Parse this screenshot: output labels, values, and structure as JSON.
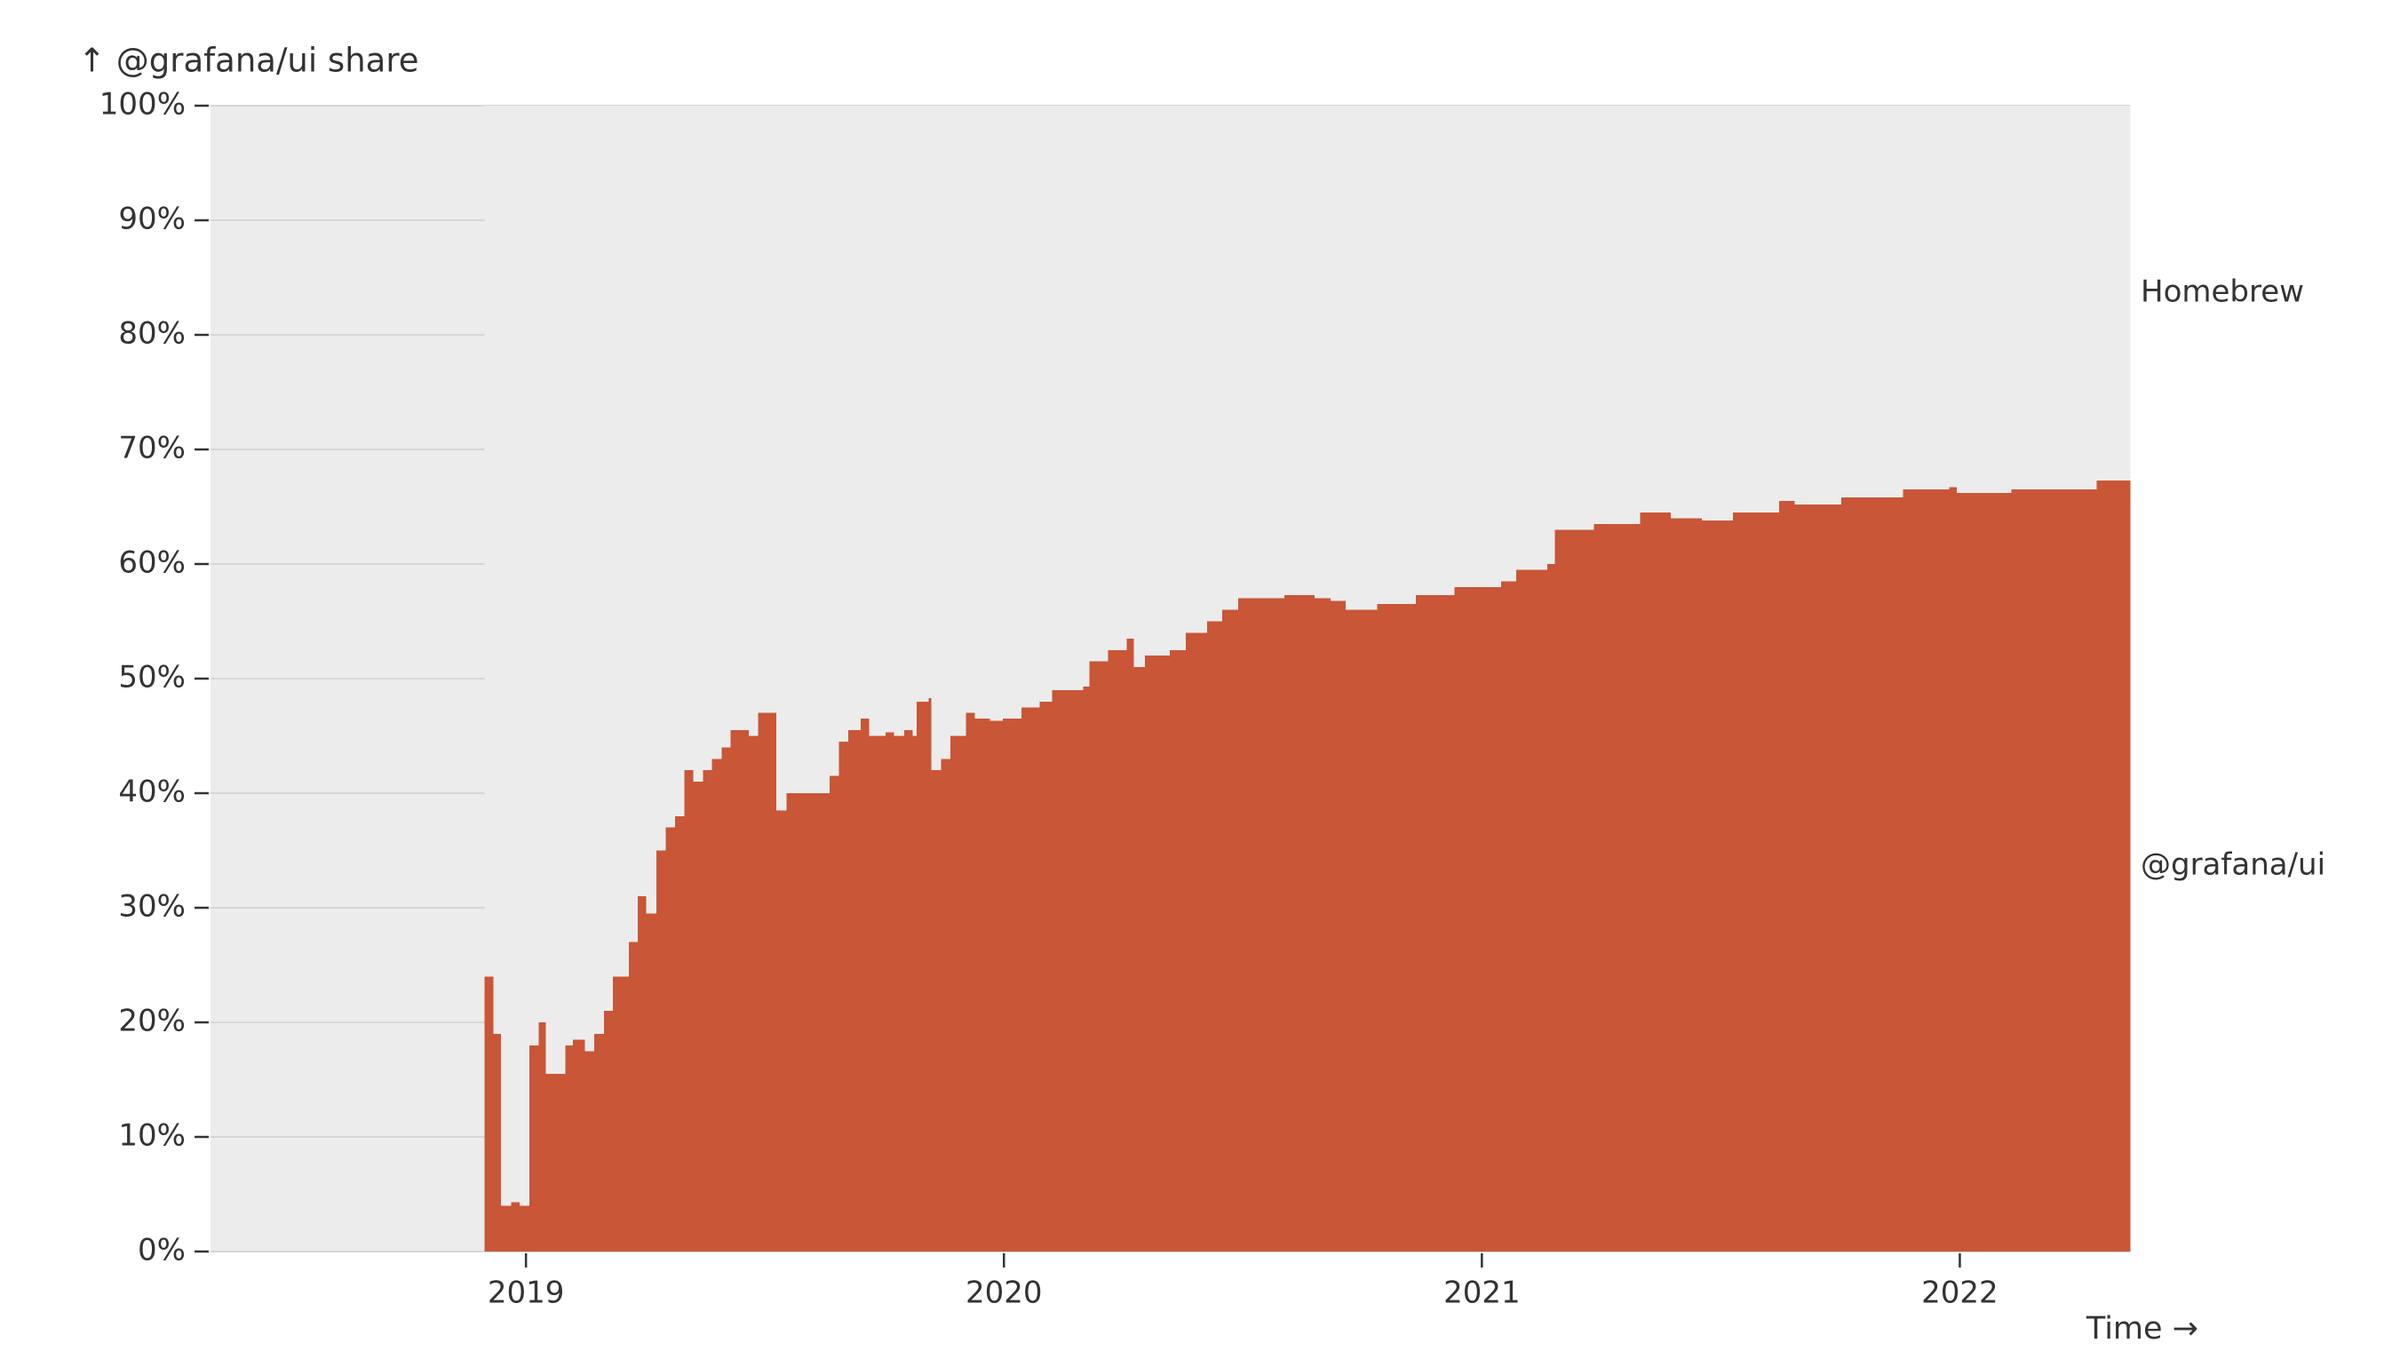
{
  "chart_data": {
    "type": "stacked_step_area",
    "title": "↑ @grafana/ui share",
    "x_label": "Time →",
    "x": [
      2018.913,
      2018.932,
      2018.948,
      2018.968,
      2018.987,
      2019.006,
      2019.026,
      2019.042,
      2019.081,
      2019.097,
      2019.123,
      2019.142,
      2019.162,
      2019.181,
      2019.214,
      2019.233,
      2019.252,
      2019.272,
      2019.291,
      2019.311,
      2019.33,
      2019.35,
      2019.369,
      2019.388,
      2019.408,
      2019.427,
      2019.466,
      2019.485,
      2019.524,
      2019.544,
      2019.634,
      2019.654,
      2019.673,
      2019.699,
      2019.718,
      2019.751,
      2019.77,
      2019.79,
      2019.809,
      2019.816,
      2019.841,
      2019.848,
      2019.867,
      2019.887,
      2019.919,
      2019.939,
      2019.971,
      2019.997,
      2020.036,
      2020.074,
      2020.1,
      2020.165,
      2020.178,
      2020.217,
      2020.256,
      2020.272,
      2020.294,
      2020.346,
      2020.379,
      2020.424,
      2020.456,
      2020.489,
      2020.586,
      2020.65,
      2020.683,
      2020.715,
      2020.78,
      2020.861,
      2020.942,
      2021.039,
      2021.071,
      2021.136,
      2021.152,
      2021.233,
      2021.33,
      2021.395,
      2021.46,
      2021.524,
      2021.621,
      2021.654,
      2021.751,
      2021.88,
      2021.977,
      2021.994,
      2022.107,
      2022.285
    ],
    "series": [
      {
        "name": "@grafana/ui",
        "color": "#c85637",
        "values": [
          24,
          19,
          4,
          4.3,
          4,
          18,
          20,
          15.5,
          18,
          18.5,
          17.5,
          19,
          21,
          24,
          27,
          31,
          29.5,
          35,
          37,
          38,
          42,
          41,
          42,
          43,
          44,
          45.5,
          45,
          47,
          38.5,
          40,
          41.5,
          44.5,
          45.5,
          46.5,
          45,
          45.3,
          45,
          45.5,
          45,
          48,
          48.3,
          42,
          43,
          45,
          47,
          46.5,
          46.3,
          46.5,
          47.5,
          48,
          49,
          49.3,
          51.5,
          52.5,
          53.5,
          51,
          52,
          52.5,
          54,
          55,
          56,
          57,
          57.3,
          57,
          56.8,
          56,
          56.5,
          57.3,
          58,
          58.5,
          59.5,
          60,
          63,
          63.5,
          64.5,
          64,
          63.8,
          64.5,
          65.5,
          65.2,
          65.8,
          66.5,
          66.7,
          66.2,
          66.5,
          67.3
        ]
      },
      {
        "name": "Homebrew",
        "color": "#ececec",
        "values": [
          76,
          81,
          96,
          95.7,
          96,
          82,
          80,
          84.5,
          82,
          81.5,
          82.5,
          81,
          79,
          76,
          73,
          69,
          70.5,
          65,
          63,
          62,
          58,
          59,
          58,
          57,
          56,
          54.5,
          55,
          53,
          61.5,
          60,
          58.5,
          55.5,
          54.5,
          53.5,
          55,
          54.7,
          55,
          54.5,
          55,
          52,
          51.7,
          58,
          57,
          55,
          53,
          53.5,
          53.7,
          53.5,
          52.5,
          52,
          51,
          50.7,
          48.5,
          47.5,
          46.5,
          49,
          48,
          47.5,
          46,
          45,
          44,
          43,
          42.7,
          43,
          43.2,
          44,
          43.5,
          42.7,
          42,
          41.5,
          40.5,
          40,
          37,
          36.5,
          35.5,
          36,
          36.2,
          35.5,
          34.5,
          34.8,
          34.2,
          33.5,
          33.3,
          33.8,
          33.5,
          32.7
        ]
      }
    ],
    "xlim": [
      2018.34,
      2022.356
    ],
    "xticks": [
      2019,
      2020,
      2021,
      2022
    ],
    "ylim": [
      0,
      100
    ],
    "yticks": [
      {
        "value": 0,
        "label": "0%"
      },
      {
        "value": 10,
        "label": "10%"
      },
      {
        "value": 20,
        "label": "20%"
      },
      {
        "value": 30,
        "label": "30%"
      },
      {
        "value": 40,
        "label": "40%"
      },
      {
        "value": 50,
        "label": "50%"
      },
      {
        "value": 60,
        "label": "60%"
      },
      {
        "value": 70,
        "label": "70%"
      },
      {
        "value": 80,
        "label": "80%"
      },
      {
        "value": 90,
        "label": "90%"
      },
      {
        "value": 100,
        "label": "100%"
      }
    ],
    "grid": true,
    "plot_background": "#ececec"
  }
}
